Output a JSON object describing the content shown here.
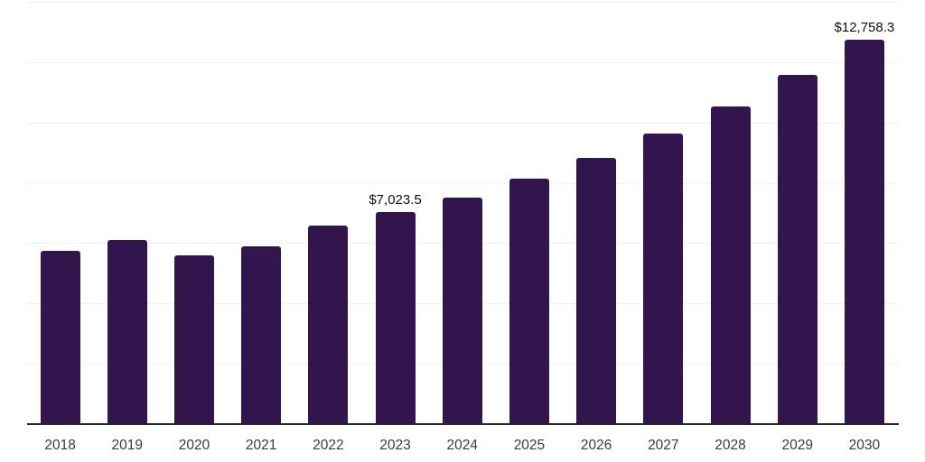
{
  "chart_data": {
    "type": "bar",
    "title": "",
    "xlabel": "",
    "ylabel": "",
    "categories": [
      "2018",
      "2019",
      "2020",
      "2021",
      "2022",
      "2023",
      "2024",
      "2025",
      "2026",
      "2027",
      "2028",
      "2029",
      "2030"
    ],
    "values": [
      5730,
      6110,
      5600,
      5880,
      6570,
      7023.5,
      7520,
      8150,
      8830,
      9640,
      10540,
      11570,
      12758.3
    ],
    "annotations": [
      {
        "index": 5,
        "text": "$7,023.5"
      },
      {
        "index": 12,
        "text": "$12,758.3"
      }
    ],
    "ylim": [
      0,
      14000
    ],
    "gridline_step": 2000,
    "grid": true,
    "legend": false,
    "colors": {
      "bar": "#32154d",
      "gridline": "#f0f0f0",
      "axis_line": "#26262b",
      "tick_label": "#3b3b3b",
      "annotation_label": "#101010"
    }
  }
}
